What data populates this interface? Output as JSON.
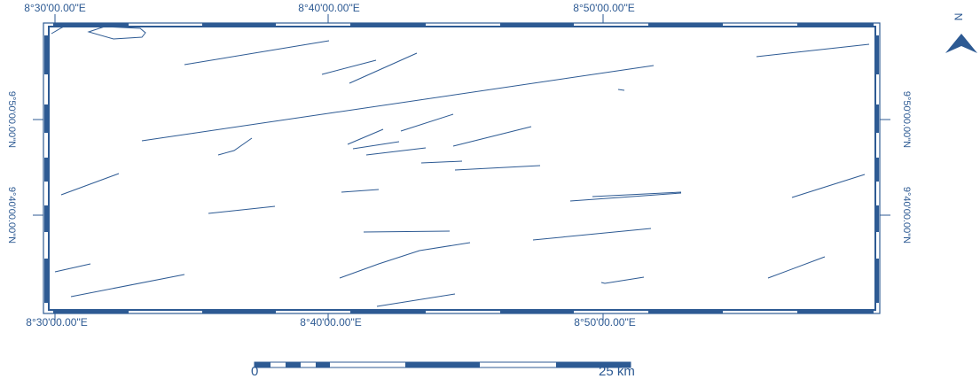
{
  "map": {
    "top_labels": [
      "8°30'00.00\"E",
      "8°40'00.00\"E",
      "8°50'00.00\"E"
    ],
    "bottom_labels": [
      "8°30'00.00\"E",
      "8°40'00.00\"E",
      "8°50'00.00\"E"
    ],
    "left_labels": [
      "9°50'00.00\"N",
      "9°40'00.00\"N"
    ],
    "right_labels": [
      "9°50'00.00\"N",
      "9°40'00.00\"N"
    ],
    "north_letter": "N",
    "scale": {
      "start": "0",
      "end": "25 km"
    },
    "colors": {
      "line": "#2d5a93",
      "frame": "#2d5a93",
      "background": "#ffffff"
    },
    "icons": {
      "north_arrow": "north-arrow-icon"
    },
    "feature_type": "lineaments"
  }
}
